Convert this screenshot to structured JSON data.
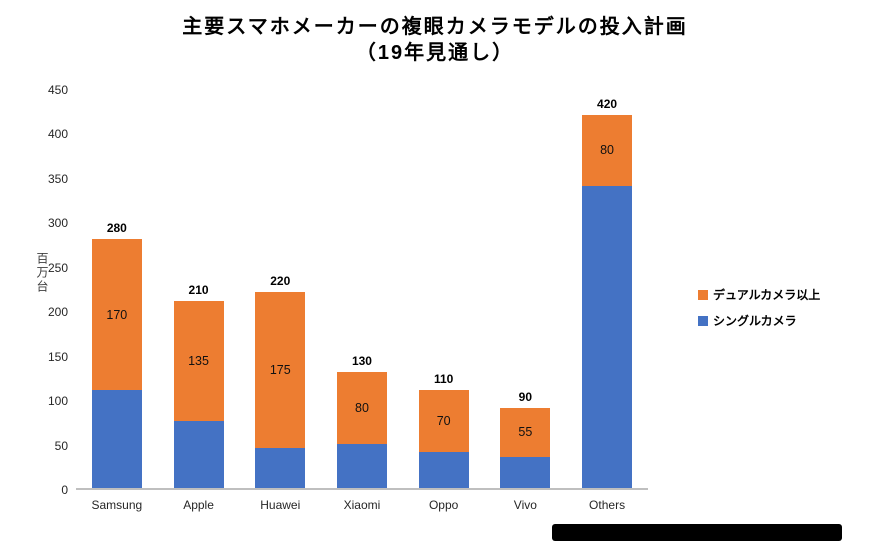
{
  "title": {
    "line1": "主要スマホメーカーの複眼カメラモデルの投入計画",
    "line2": "（19年見通し）"
  },
  "chart_data": {
    "type": "bar",
    "stacked": true,
    "title": "主要スマホメーカーの複眼カメラモデルの投入計画（19年見通し）",
    "xlabel": "",
    "ylabel": "百万台",
    "ylim": [
      0,
      450
    ],
    "yticks": [
      0,
      50,
      100,
      150,
      200,
      250,
      300,
      350,
      400,
      450
    ],
    "grid": false,
    "legend_position": "right",
    "categories": [
      "Samsung",
      "Apple",
      "Huawei",
      "Xiaomi",
      "Oppo",
      "Vivo",
      "Others"
    ],
    "series": [
      {
        "name": "シングルカメラ",
        "color": "#4472C4",
        "values": [
          110,
          75,
          45,
          50,
          40,
          35,
          340
        ]
      },
      {
        "name": "デュアルカメラ以上",
        "color": "#ED7D31",
        "values": [
          170,
          135,
          175,
          80,
          70,
          55,
          80
        ]
      }
    ],
    "segment_labels_shown_on": "デュアルカメラ以上",
    "segment_labels": [
      170,
      135,
      175,
      80,
      70,
      55,
      80
    ],
    "totals": [
      280,
      210,
      220,
      130,
      110,
      90,
      420
    ]
  },
  "legend": {
    "items": [
      {
        "label": "デュアルカメラ以上",
        "color": "#ED7D31"
      },
      {
        "label": "シングルカメラ",
        "color": "#4472C4"
      }
    ]
  },
  "colors": {
    "single_camera": "#4472C4",
    "dual_camera": "#ED7D31",
    "axis_line": "#BFBFBF",
    "background": "#FFFFFF"
  }
}
